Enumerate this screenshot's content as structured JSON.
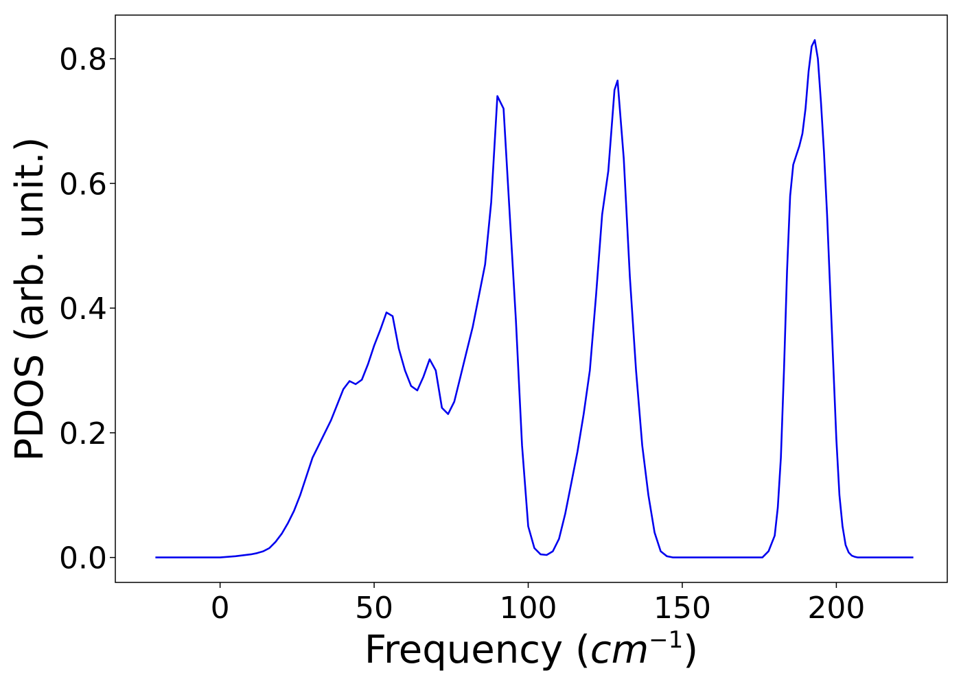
{
  "chart_data": {
    "type": "line",
    "title": "",
    "xlabel": "Frequency (",
    "xlabel_math": "cm",
    "xlabel_sup": "−1",
    "xlabel_close": ")",
    "ylabel": "PDOS (arb. unit.)",
    "xlim": [
      -34,
      236
    ],
    "ylim": [
      -0.04,
      0.87
    ],
    "xticks": [
      0,
      50,
      100,
      150,
      200
    ],
    "xtick_labels": [
      "0",
      "50",
      "100",
      "150",
      "200"
    ],
    "yticks": [
      0.0,
      0.2,
      0.4,
      0.6,
      0.8
    ],
    "ytick_labels": [
      "0.0",
      "0.2",
      "0.4",
      "0.6",
      "0.8"
    ],
    "grid": false,
    "line_color": "#0000ee",
    "series": [
      {
        "x": [
          -21,
          -15,
          -10,
          -5,
          0,
          5,
          10,
          12,
          14,
          16,
          18,
          20,
          22,
          24,
          26,
          28,
          30,
          32,
          34,
          36,
          38,
          40,
          42,
          44,
          46,
          48,
          50,
          52,
          54,
          56,
          58,
          60,
          62,
          64,
          66,
          68,
          70,
          72,
          74,
          76,
          78,
          80,
          82,
          84,
          86,
          88,
          90,
          92,
          94,
          96,
          98,
          100,
          102,
          104,
          106,
          108,
          110,
          112,
          114,
          116,
          118,
          120,
          122,
          124,
          126,
          128,
          129,
          131,
          133,
          135,
          137,
          139,
          141,
          143,
          145,
          147,
          150,
          160,
          170,
          176,
          178,
          180,
          181,
          182,
          183,
          184,
          185,
          186,
          187,
          188,
          189,
          190,
          191,
          192,
          193,
          194,
          195,
          196,
          197,
          198,
          199,
          200,
          201,
          202,
          203,
          204,
          205,
          206,
          207,
          208,
          209,
          210,
          212,
          215,
          220,
          225
        ],
        "y": [
          0,
          0,
          0,
          0,
          0,
          0.002,
          0.005,
          0.007,
          0.01,
          0.015,
          0.025,
          0.038,
          0.055,
          0.075,
          0.1,
          0.13,
          0.16,
          0.18,
          0.2,
          0.22,
          0.245,
          0.27,
          0.283,
          0.278,
          0.285,
          0.31,
          0.34,
          0.365,
          0.393,
          0.387,
          0.335,
          0.3,
          0.275,
          0.268,
          0.29,
          0.318,
          0.3,
          0.24,
          0.23,
          0.25,
          0.29,
          0.33,
          0.37,
          0.42,
          0.47,
          0.57,
          0.74,
          0.72,
          0.55,
          0.38,
          0.18,
          0.05,
          0.015,
          0.005,
          0.004,
          0.01,
          0.03,
          0.07,
          0.12,
          0.17,
          0.23,
          0.3,
          0.42,
          0.55,
          0.62,
          0.75,
          0.765,
          0.64,
          0.45,
          0.3,
          0.18,
          0.1,
          0.04,
          0.01,
          0.002,
          0,
          0,
          0,
          0,
          0,
          0.01,
          0.035,
          0.08,
          0.16,
          0.3,
          0.46,
          0.58,
          0.63,
          0.645,
          0.66,
          0.68,
          0.72,
          0.78,
          0.82,
          0.83,
          0.8,
          0.73,
          0.65,
          0.55,
          0.43,
          0.31,
          0.19,
          0.1,
          0.05,
          0.02,
          0.008,
          0.003,
          0.001,
          0,
          0,
          0,
          0,
          0,
          0,
          0,
          0
        ]
      }
    ]
  }
}
